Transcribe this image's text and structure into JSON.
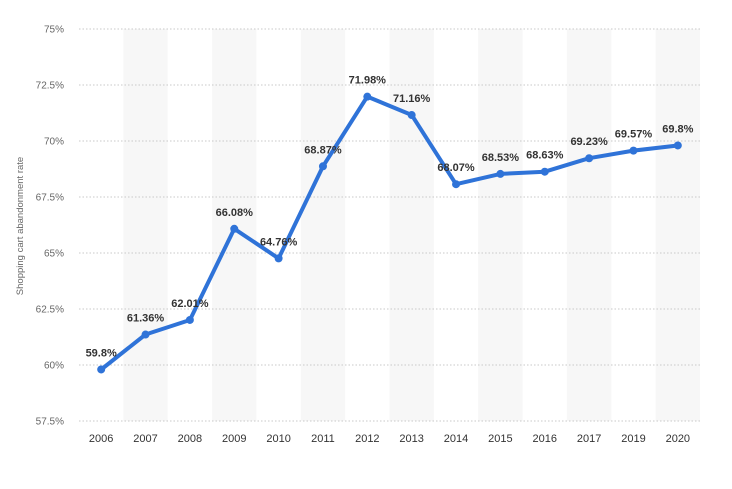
{
  "chart_data": {
    "type": "line",
    "title": "",
    "xlabel": "",
    "ylabel": "Shopping cart abandonment rate",
    "ylim": [
      57.5,
      75
    ],
    "yticks": [
      "57.5%",
      "60%",
      "62.5%",
      "65%",
      "67.5%",
      "70%",
      "72.5%",
      "75%"
    ],
    "grid": true,
    "legend": "none",
    "categories": [
      "2006",
      "2007",
      "2008",
      "2009",
      "2010",
      "2011",
      "2012",
      "2013",
      "2014",
      "2015",
      "2016",
      "2017",
      "2019",
      "2020"
    ],
    "values": [
      59.8,
      61.36,
      62.01,
      66.08,
      64.76,
      68.87,
      71.98,
      71.16,
      68.07,
      68.53,
      68.63,
      69.23,
      69.57,
      69.8
    ],
    "data_labels": [
      "59.8%",
      "61.36%",
      "62.01%",
      "66.08%",
      "64.76%",
      "68.87%",
      "71.98%",
      "71.16%",
      "68.07%",
      "68.53%",
      "68.63%",
      "69.23%",
      "69.57%",
      "69.8%"
    ],
    "line_color": "#2f73d8",
    "band_color": "#f7f7f7"
  }
}
